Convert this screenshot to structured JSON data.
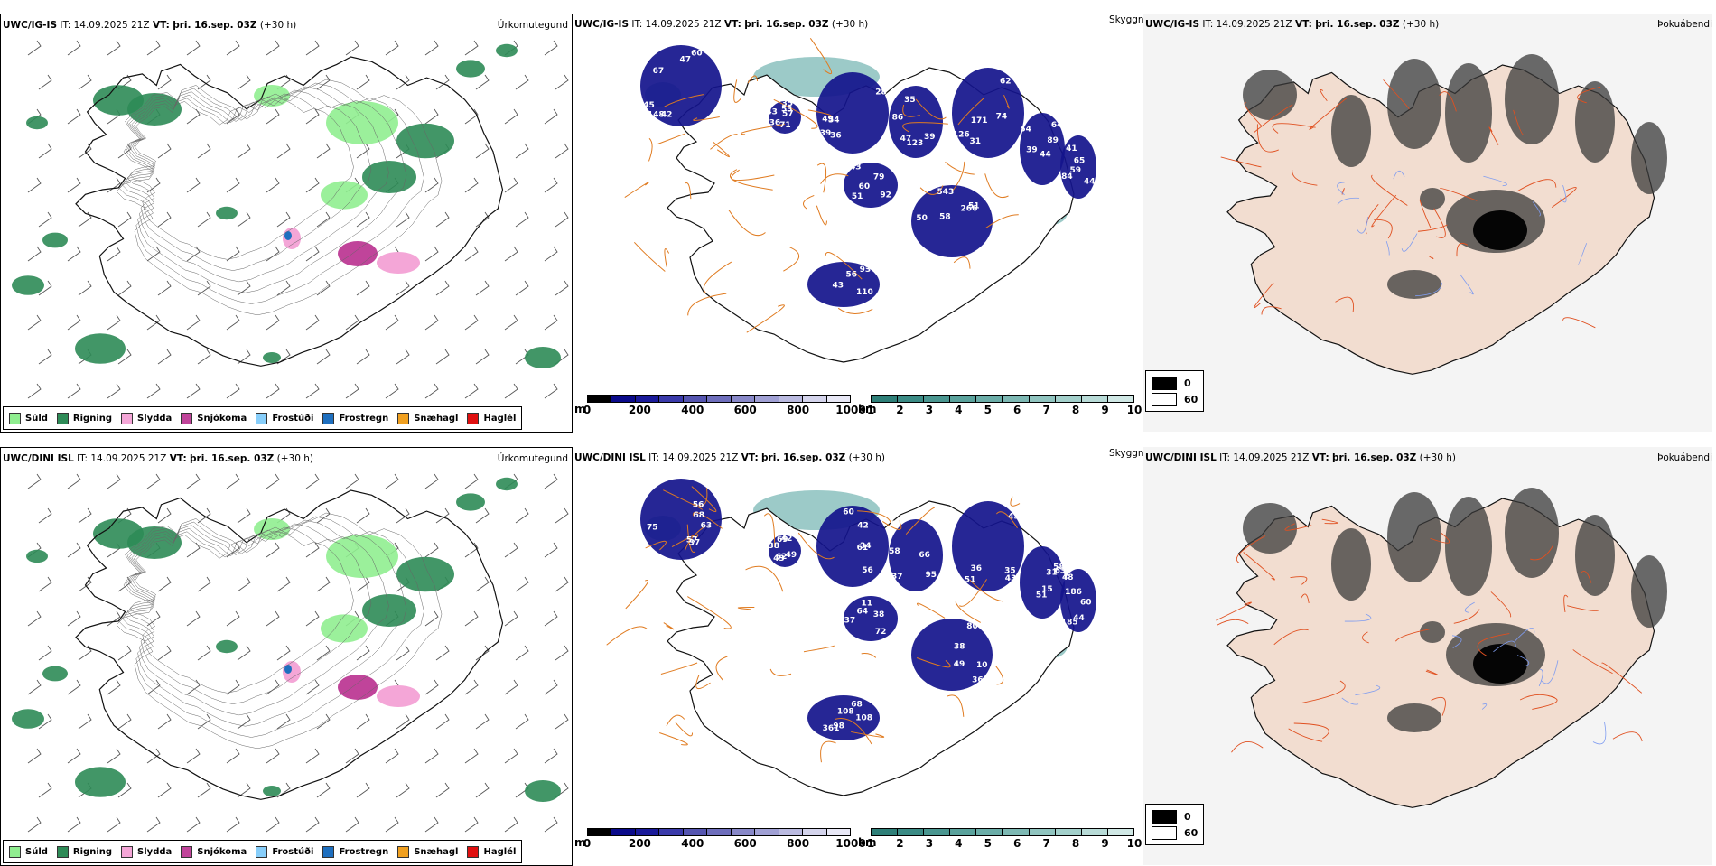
{
  "colors": {
    "land_fill": "#ffffff",
    "precip_light": "#8fe08a",
    "precip_dark": "#2e8b57",
    "cloud_dark": "#14148c",
    "cloud_teal": "#4a9f9a",
    "road": "#e07b20",
    "visibility_bg": "#f2ddd0"
  },
  "precip_legend": [
    {
      "label": "Súld",
      "color": "#90ee90"
    },
    {
      "label": "Rigning",
      "color": "#2e8b57"
    },
    {
      "label": "Slydda",
      "color": "#f4a6d7"
    },
    {
      "label": "Snjókoma",
      "color": "#c0449a"
    },
    {
      "label": "Frostúði",
      "color": "#87cefa"
    },
    {
      "label": "Frostregn",
      "color": "#1e6fbf"
    },
    {
      "label": "Snæhagl",
      "color": "#f0a020"
    },
    {
      "label": "Haglél",
      "color": "#e01010"
    }
  ],
  "cloud_base_bar": {
    "unit": "m",
    "ticks": [
      "0",
      "200",
      "400",
      "600",
      "800",
      "1000"
    ],
    "colors": [
      "#000000",
      "#0a0a8a",
      "#1a1a9a",
      "#3a3aaa",
      "#5555b0",
      "#6e6ebc",
      "#8888c8",
      "#a0a0d4",
      "#babae0",
      "#d4d4ec",
      "#e8e8f6"
    ]
  },
  "visibility_bar": {
    "unit": "km",
    "ticks": [
      "1",
      "2",
      "3",
      "4",
      "5",
      "6",
      "7",
      "8",
      "9",
      "10"
    ],
    "colors": [
      "#2e7f78",
      "#3b8b85",
      "#4a9690",
      "#5aa29c",
      "#6badA8",
      "#7db8b3",
      "#90c4bf",
      "#a3d0cb",
      "#b8dbd7",
      "#d0e8e5"
    ]
  },
  "fog_legend": {
    "items": [
      {
        "label": "0",
        "color": "#000000"
      },
      {
        "label": "60",
        "color": "#ffffff"
      }
    ]
  },
  "rows": [
    {
      "model": "UWC/IG-IS",
      "it_label": "IT:",
      "it_value": "14.09.2025 21Z",
      "vt_label": "VT:",
      "vt_value": "þri. 16.sep. 03Z",
      "lead": "(+30 h)",
      "precip_type_title": "Úrkomutegund",
      "visibility_title": "Skyggni",
      "fog_title": "Þokuábendi",
      "labels": [
        {
          "t": "47",
          "v": 0
        },
        {
          "t": "35",
          "v": 1
        },
        {
          "t": "28",
          "v": 2
        },
        {
          "t": "35",
          "v": 3
        },
        {
          "t": "31",
          "v": 4
        },
        {
          "t": "54",
          "v": 5
        },
        {
          "t": "43",
          "v": 6
        },
        {
          "t": "58",
          "v": 7
        },
        {
          "t": "56",
          "v": 8
        },
        {
          "t": "41",
          "v": 9
        },
        {
          "t": "42",
          "v": 10
        },
        {
          "t": "36",
          "v": 11
        },
        {
          "t": "39",
          "v": 12
        },
        {
          "t": "47",
          "v": 13
        },
        {
          "t": "62",
          "v": 14
        },
        {
          "t": "89",
          "v": 15
        },
        {
          "t": "79",
          "v": 16
        },
        {
          "t": "50",
          "v": 17
        },
        {
          "t": "93",
          "v": 18
        },
        {
          "t": "44",
          "v": 19
        },
        {
          "t": "67",
          "v": 20
        },
        {
          "t": "57",
          "v": 21
        },
        {
          "t": "54",
          "v": 22
        },
        {
          "t": "123",
          "v": 23
        },
        {
          "t": "171",
          "v": 24
        },
        {
          "t": "64",
          "v": 25
        },
        {
          "t": "60",
          "v": 26
        },
        {
          "t": "543",
          "v": 27
        },
        {
          "t": "43",
          "v": 28
        },
        {
          "t": "84",
          "v": 29
        },
        {
          "t": "148",
          "v": 30
        },
        {
          "t": "43",
          "v": 31
        },
        {
          "t": "49",
          "v": 32
        },
        {
          "t": "39",
          "v": 33
        },
        {
          "t": "126",
          "v": 34
        },
        {
          "t": "44",
          "v": 35
        },
        {
          "t": "92",
          "v": 36
        },
        {
          "t": "51",
          "v": 37
        },
        {
          "t": "31",
          "v": 38
        },
        {
          "t": "65",
          "v": 39
        },
        {
          "t": "60",
          "v": 40
        },
        {
          "t": "53",
          "v": 41
        },
        {
          "t": "36",
          "v": 42
        },
        {
          "t": "86",
          "v": 43
        },
        {
          "t": "74",
          "v": 44
        },
        {
          "t": "39",
          "v": 45
        },
        {
          "t": "51",
          "v": 46
        },
        {
          "t": "266",
          "v": 47
        },
        {
          "t": "110",
          "v": 48
        },
        {
          "t": "59",
          "v": 49
        },
        {
          "t": "45",
          "v": 50
        },
        {
          "t": "71",
          "v": 51
        }
      ]
    },
    {
      "model": "UWC/DINI ISL",
      "it_label": "IT:",
      "it_value": "14.09.2025 21Z",
      "vt_label": "VT:",
      "vt_value": "þri. 16.sep. 03Z",
      "lead": "(+30 h)",
      "precip_type_title": "Úrkomutegund",
      "visibility_title": "Skyggni",
      "fog_title": "Þokuábendi",
      "labels": [
        {
          "t": "56",
          "v": 0
        },
        {
          "t": "42",
          "v": 1
        },
        {
          "t": "34",
          "v": 2
        },
        {
          "t": "58",
          "v": 3
        },
        {
          "t": "36",
          "v": 4
        },
        {
          "t": "58",
          "v": 5
        },
        {
          "t": "37",
          "v": 6
        },
        {
          "t": "36",
          "v": 7
        },
        {
          "t": "108",
          "v": 8
        },
        {
          "t": "48",
          "v": 9
        },
        {
          "t": "37",
          "v": 10
        },
        {
          "t": "49",
          "v": 11
        },
        {
          "t": "42",
          "v": 12
        },
        {
          "t": "37",
          "v": 13
        },
        {
          "t": "45",
          "v": 14
        },
        {
          "t": "63",
          "v": 15
        },
        {
          "t": "64",
          "v": 16
        },
        {
          "t": "80",
          "v": 17
        },
        {
          "t": "98",
          "v": 18
        },
        {
          "t": "60",
          "v": 19
        },
        {
          "t": "57",
          "v": 20
        },
        {
          "t": "43",
          "v": 21
        },
        {
          "t": "56",
          "v": 22
        },
        {
          "t": "95",
          "v": 23
        },
        {
          "t": "43",
          "v": 24
        },
        {
          "t": "15",
          "v": 25
        },
        {
          "t": "38",
          "v": 26
        },
        {
          "t": "38",
          "v": 27
        },
        {
          "t": "68",
          "v": 28
        },
        {
          "t": "44",
          "v": 29
        },
        {
          "t": "68",
          "v": 30
        },
        {
          "t": "62",
          "v": 31
        },
        {
          "t": "61",
          "v": 32
        },
        {
          "t": "66",
          "v": 33
        },
        {
          "t": "35",
          "v": 34
        },
        {
          "t": "51",
          "v": 35
        },
        {
          "t": "72",
          "v": 36
        },
        {
          "t": "49",
          "v": 37
        },
        {
          "t": "361",
          "v": 38
        },
        {
          "t": "185",
          "v": 39
        },
        {
          "t": "63",
          "v": 40
        },
        {
          "t": "69",
          "v": 41
        },
        {
          "t": "60",
          "v": 42
        },
        {
          "t": "87",
          "v": 43
        },
        {
          "t": "51",
          "v": 44
        },
        {
          "t": "31",
          "v": 45
        },
        {
          "t": "11",
          "v": 46
        },
        {
          "t": "10",
          "v": 47
        },
        {
          "t": "108",
          "v": 48
        },
        {
          "t": "186",
          "v": 49
        },
        {
          "t": "75",
          "v": 50
        },
        {
          "t": "38",
          "v": 51
        }
      ]
    }
  ]
}
